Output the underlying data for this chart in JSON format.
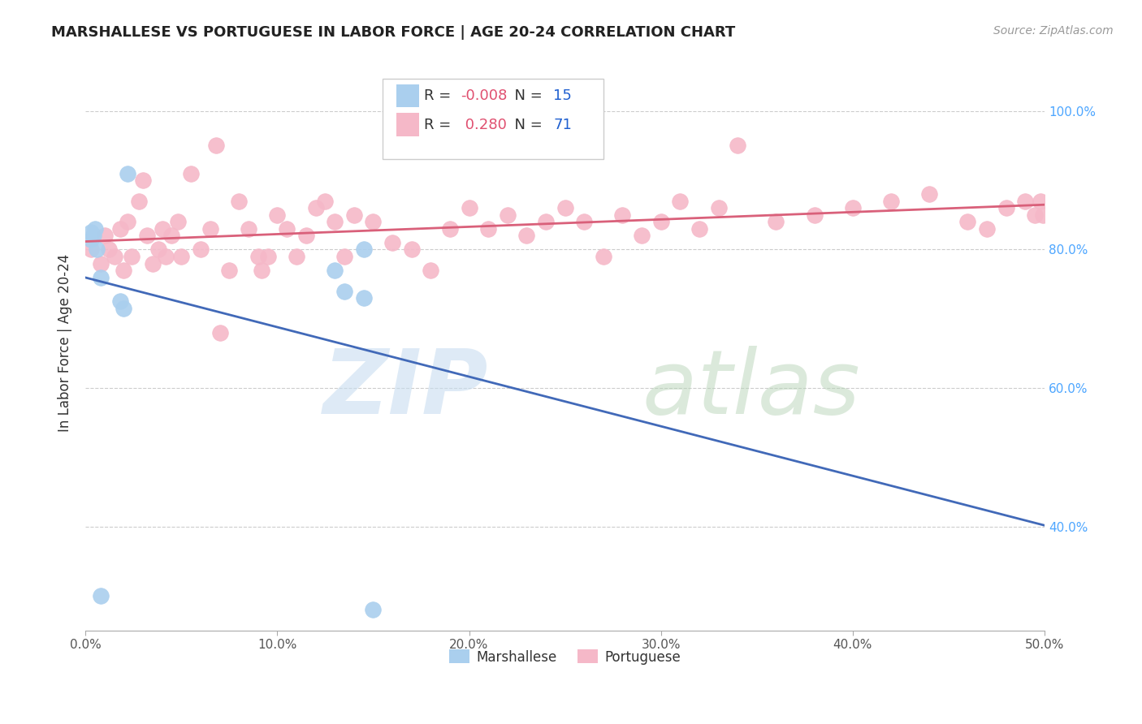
{
  "title": "MARSHALLESE VS PORTUGUESE IN LABOR FORCE | AGE 20-24 CORRELATION CHART",
  "source": "Source: ZipAtlas.com",
  "xlim": [
    0.0,
    0.5
  ],
  "ylim": [
    0.25,
    1.08
  ],
  "ylabel": "In Labor Force | Age 20-24",
  "marshallese_R": -0.008,
  "marshallese_N": 15,
  "portuguese_R": 0.28,
  "portuguese_N": 71,
  "marshallese_color": "#aacfee",
  "portuguese_color": "#f5b8c8",
  "marshallese_line_color": "#4169b8",
  "portuguese_line_color": "#d9607a",
  "marshallese_x": [
    0.003,
    0.003,
    0.004,
    0.005,
    0.006,
    0.008,
    0.008,
    0.018,
    0.02,
    0.022,
    0.13,
    0.135,
    0.145,
    0.145,
    0.15
  ],
  "marshallese_y": [
    0.815,
    0.825,
    0.82,
    0.83,
    0.8,
    0.3,
    0.76,
    0.725,
    0.715,
    0.91,
    0.77,
    0.74,
    0.73,
    0.8,
    0.28
  ],
  "portuguese_x": [
    0.003,
    0.008,
    0.01,
    0.012,
    0.015,
    0.018,
    0.02,
    0.022,
    0.024,
    0.028,
    0.03,
    0.032,
    0.035,
    0.038,
    0.04,
    0.042,
    0.045,
    0.048,
    0.05,
    0.055,
    0.06,
    0.065,
    0.068,
    0.07,
    0.075,
    0.08,
    0.085,
    0.09,
    0.092,
    0.095,
    0.1,
    0.105,
    0.11,
    0.115,
    0.12,
    0.125,
    0.13,
    0.135,
    0.14,
    0.15,
    0.16,
    0.17,
    0.18,
    0.19,
    0.2,
    0.21,
    0.22,
    0.23,
    0.24,
    0.25,
    0.26,
    0.27,
    0.28,
    0.29,
    0.3,
    0.31,
    0.32,
    0.33,
    0.34,
    0.36,
    0.38,
    0.4,
    0.42,
    0.44,
    0.46,
    0.47,
    0.48,
    0.49,
    0.495,
    0.498,
    0.499
  ],
  "portuguese_y": [
    0.8,
    0.78,
    0.82,
    0.8,
    0.79,
    0.83,
    0.77,
    0.84,
    0.79,
    0.87,
    0.9,
    0.82,
    0.78,
    0.8,
    0.83,
    0.79,
    0.82,
    0.84,
    0.79,
    0.91,
    0.8,
    0.83,
    0.95,
    0.68,
    0.77,
    0.87,
    0.83,
    0.79,
    0.77,
    0.79,
    0.85,
    0.83,
    0.79,
    0.82,
    0.86,
    0.87,
    0.84,
    0.79,
    0.85,
    0.84,
    0.81,
    0.8,
    0.77,
    0.83,
    0.86,
    0.83,
    0.85,
    0.82,
    0.84,
    0.86,
    0.84,
    0.79,
    0.85,
    0.82,
    0.84,
    0.87,
    0.83,
    0.86,
    0.95,
    0.84,
    0.85,
    0.86,
    0.87,
    0.88,
    0.84,
    0.83,
    0.86,
    0.87,
    0.85,
    0.87,
    0.85
  ],
  "legend_R_color": "#e05070",
  "legend_N_color": "#2060d0",
  "ytick_vals": [
    0.4,
    0.6,
    0.8,
    1.0
  ],
  "ytick_labels": [
    "40.0%",
    "60.0%",
    "80.0%",
    "100.0%"
  ],
  "xtick_vals": [
    0.0,
    0.1,
    0.2,
    0.3,
    0.4,
    0.5
  ],
  "xtick_labels": [
    "0.0%",
    "10.0%",
    "20.0%",
    "30.0%",
    "40.0%",
    "50.0%"
  ]
}
